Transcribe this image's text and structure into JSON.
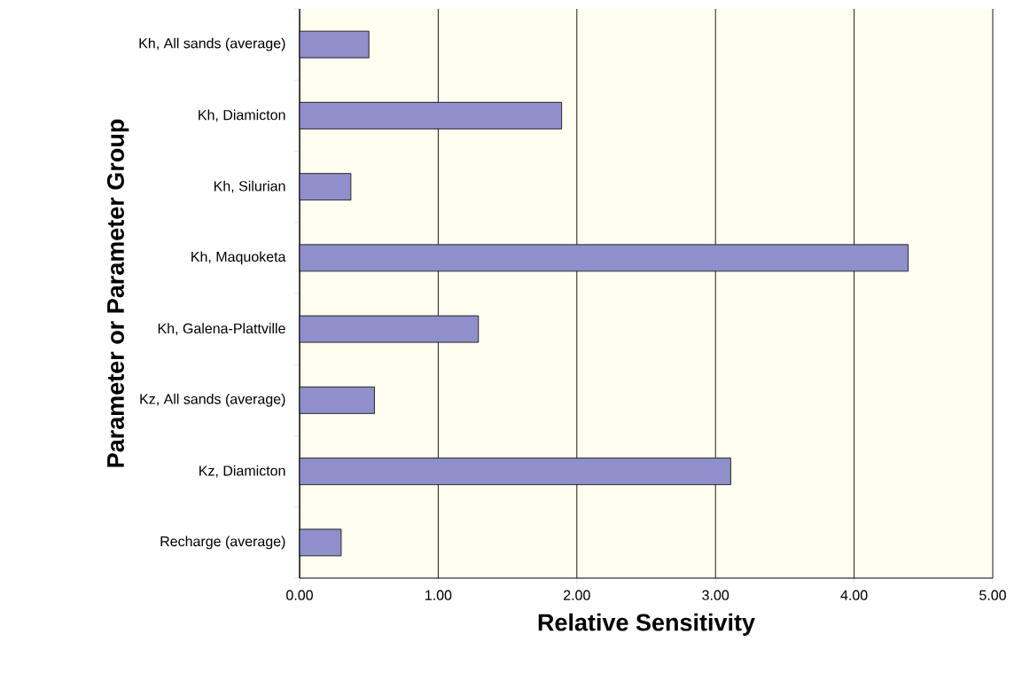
{
  "chart_data": {
    "type": "bar",
    "orientation": "horizontal",
    "xlabel": "Relative Sensitivity",
    "ylabel": "Parameter or Parameter Group",
    "categories": [
      "Kh, All sands (average)",
      "Kh, Diamicton",
      "Kh, Silurian",
      "Kh, Maquoketa",
      "Kh, Galena-Plattville",
      "Kz, All sands (average)",
      "Kz, Diamicton",
      "Recharge (average)"
    ],
    "values": [
      0.5,
      1.89,
      0.37,
      4.39,
      1.29,
      0.54,
      3.11,
      0.3
    ],
    "color": "#8f8fcc",
    "xlim": [
      0,
      5
    ],
    "xticks": [
      {
        "value": 0,
        "label": "0.00"
      },
      {
        "value": 1,
        "label": "1.00"
      },
      {
        "value": 2,
        "label": "2.00"
      },
      {
        "value": 3,
        "label": "3.00"
      },
      {
        "value": 4,
        "label": "4.00"
      },
      {
        "value": 5,
        "label": "5.00"
      }
    ],
    "grid": "x"
  }
}
